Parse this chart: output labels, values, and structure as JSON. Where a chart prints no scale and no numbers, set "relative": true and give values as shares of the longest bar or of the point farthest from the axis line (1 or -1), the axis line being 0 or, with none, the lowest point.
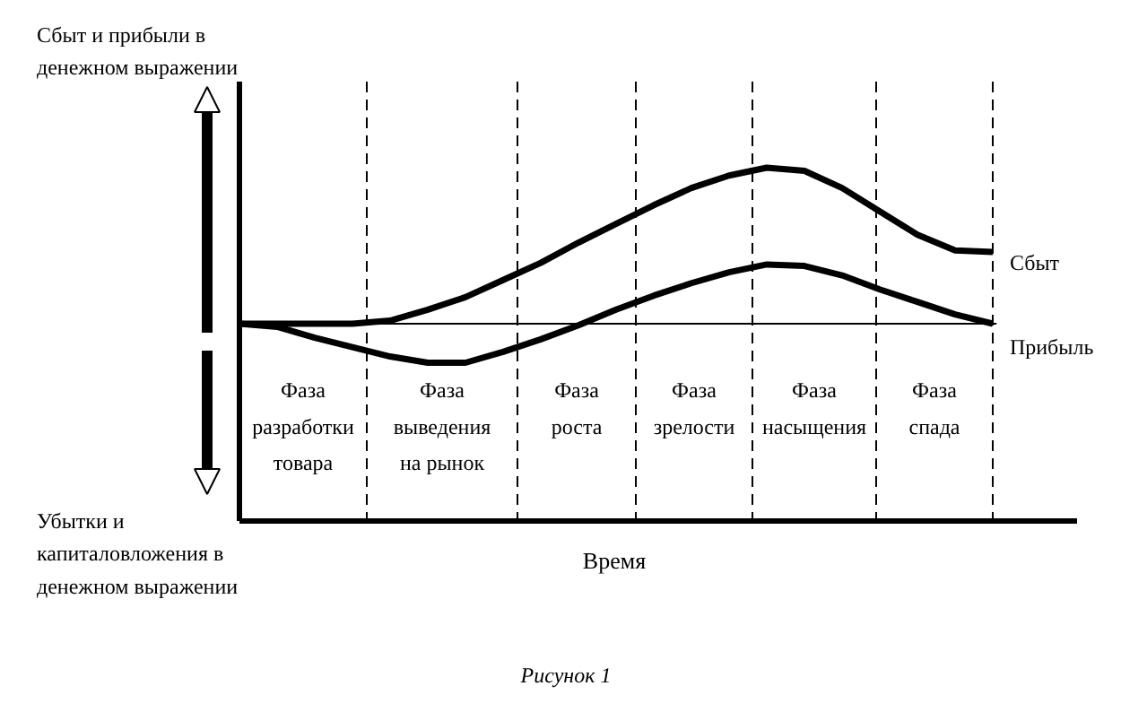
{
  "chart_data": {
    "type": "line",
    "relative": true,
    "ylabel": "Сбыт и прибыли в денежном выражении",
    "categories": [
      null,
      null,
      null,
      null,
      null,
      null,
      null,
      null,
      null,
      null,
      null,
      null,
      null,
      null,
      null,
      null,
      null,
      null,
      null,
      null,
      null
    ],
    "series": [
      {
        "name": "Сбыт",
        "color": "#000000",
        "values": [
          0,
          0,
          0,
          0,
          0.02,
          0.09,
          0.17,
          0.28,
          0.39,
          0.52,
          0.64,
          0.76,
          0.87,
          0.95,
          1,
          0.98,
          0.87,
          0.72,
          0.57,
          0.47,
          0.46
        ]
      },
      {
        "name": "Прибыль",
        "color": "#000000",
        "values": [
          0,
          -0.02,
          -0.09,
          -0.15,
          -0.21,
          -0.25,
          -0.25,
          -0.18,
          -0.1,
          -0.01,
          0.09,
          0.18,
          0.26,
          0.33,
          0.38,
          0.37,
          0.31,
          0.22,
          0.14,
          0.06,
          0
        ]
      }
    ],
    "ref_lines": [
      {
        "axis": "y",
        "value": 0,
        "color": "#000000"
      }
    ],
    "annotations": [
      "Убытки и капиталовложения в денежном выражении",
      "Рисунок 1",
      "Время",
      "Фаза разработки товара",
      "Фаза выведения на рынок",
      "Фаза роста",
      "Фаза зрелости",
      "Фаза насыщения",
      "Фаза спада"
    ],
    "legend": false,
    "grid": false,
    "marker": "none",
    "line_style": "solid"
  }
}
